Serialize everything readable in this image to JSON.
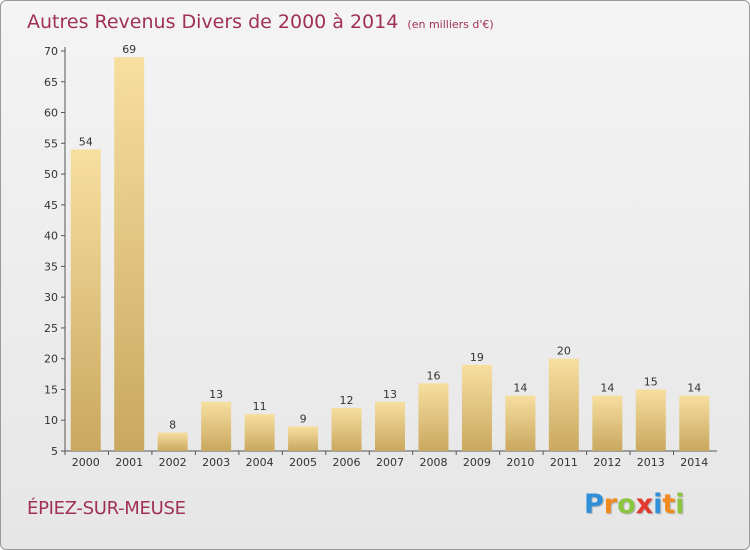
{
  "chart_data": {
    "type": "bar",
    "title": "Autres Revenus Divers de 2000 à 2014",
    "subtitle": "(en milliers d'€)",
    "categories": [
      "2000",
      "2001",
      "2002",
      "2003",
      "2004",
      "2005",
      "2006",
      "2007",
      "2008",
      "2009",
      "2010",
      "2011",
      "2012",
      "2013",
      "2014"
    ],
    "values": [
      54,
      69,
      8,
      13,
      11,
      9,
      12,
      13,
      16,
      19,
      14,
      20,
      14,
      15,
      14
    ],
    "ylim": [
      5,
      70
    ],
    "yticks": [
      5,
      10,
      15,
      20,
      25,
      30,
      35,
      40,
      45,
      50,
      55,
      60,
      65,
      70
    ],
    "xlabel": "",
    "ylabel": "",
    "grid": false,
    "colors": {
      "bar_light": "#f7dfa0",
      "bar_dark": "#c9a85f",
      "accent": "#a0305a"
    }
  },
  "place": "ÉPIEZ-SUR-MEUSE",
  "logo": {
    "text": "Proxiti",
    "letters": [
      {
        "ch": "P",
        "color": "#2f8fd8"
      },
      {
        "ch": "r",
        "color": "#f08a1c"
      },
      {
        "ch": "o",
        "color": "#8cc63f"
      },
      {
        "ch": "x",
        "color": "#e23a2e"
      },
      {
        "ch": "i",
        "color": "#2f8fd8"
      },
      {
        "ch": "t",
        "color": "#f08a1c"
      },
      {
        "ch": "i",
        "color": "#8cc63f"
      }
    ]
  }
}
